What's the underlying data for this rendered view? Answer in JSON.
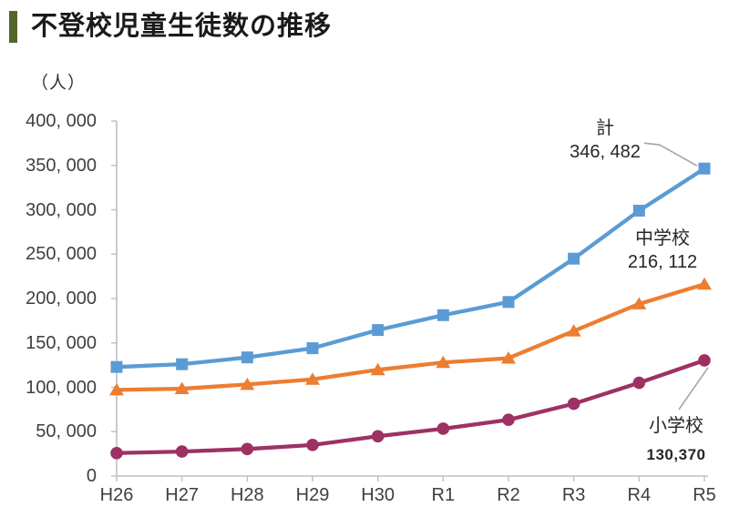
{
  "page": {
    "title": "不登校児童生徒数の推移",
    "accent_color": "#55662B"
  },
  "chart_data": {
    "type": "line",
    "title": "不登校児童生徒数の推移",
    "unit_label": "（人）",
    "xlabel": "",
    "ylabel": "（人）",
    "categories": [
      "H26",
      "H27",
      "H28",
      "H29",
      "H30",
      "R1",
      "R2",
      "R3",
      "R4",
      "R5"
    ],
    "ylim": [
      0,
      400000
    ],
    "y_step": 50000,
    "y_tick_labels": [
      "0",
      "50, 000",
      "100, 000",
      "150, 000",
      "200, 000",
      "250, 000",
      "300, 000",
      "350, 000",
      "400, 000"
    ],
    "grid": false,
    "legend_position": "none",
    "axis_color": "#BFBFBF",
    "label_color": "#3F3F3F",
    "leader_color": "#A6A6A6",
    "series": [
      {
        "name": "計",
        "color": "#5B9BD5",
        "marker": "square",
        "values": [
          122897,
          125991,
          133683,
          144031,
          164528,
          181272,
          196127,
          244940,
          299048,
          346482
        ]
      },
      {
        "name": "中学校",
        "color": "#ED7D31",
        "marker": "triangle",
        "values": [
          97033,
          98408,
          103235,
          108999,
          119687,
          127922,
          132777,
          163442,
          193936,
          216112
        ]
      },
      {
        "name": "小学校",
        "color": "#9E3164",
        "marker": "circle",
        "values": [
          25864,
          27583,
          30448,
          35032,
          44841,
          53350,
          63350,
          81498,
          105112,
          130370
        ]
      }
    ],
    "annotations": [
      {
        "series": "計",
        "label": "計",
        "value": "346, 482"
      },
      {
        "series": "中学校",
        "label": "中学校",
        "value": "216, 112"
      },
      {
        "series": "小学校",
        "label": "小学校",
        "value": "130,370"
      }
    ]
  }
}
